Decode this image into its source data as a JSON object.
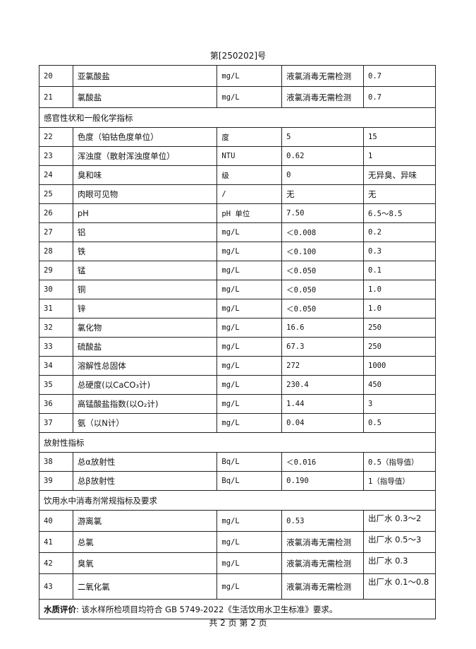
{
  "header": "第[250202]号",
  "rows_a": [
    {
      "no": "20",
      "item": "亚氯酸盐",
      "unit": "mg/L",
      "result": "液氯消毒无需检测",
      "limit": "0.7"
    },
    {
      "no": "21",
      "item": "氯酸盐",
      "unit": "mg/L",
      "result": "液氯消毒无需检测",
      "limit": "0.7"
    }
  ],
  "section1": "感官性状和一般化学指标",
  "rows_b": [
    {
      "no": "22",
      "item": "色度（铂钴色度单位）",
      "unit": "度",
      "result": "5",
      "limit": "15"
    },
    {
      "no": "23",
      "item": "浑浊度（散射浑浊度单位）",
      "unit": "NTU",
      "result": "0.62",
      "limit": "1"
    },
    {
      "no": "24",
      "item": "臭和味",
      "unit": "级",
      "result": "0",
      "limit": "无异臭、异味"
    },
    {
      "no": "25",
      "item": "肉眼可见物",
      "unit": "/",
      "result": "无",
      "limit": "无"
    },
    {
      "no": "26",
      "item": "pH",
      "unit": "pH 单位",
      "result": "7.50",
      "limit": "6.5～8.5"
    },
    {
      "no": "27",
      "item": "铝",
      "unit": "mg/L",
      "result": "＜0.008",
      "limit": "0.2"
    },
    {
      "no": "28",
      "item": "铁",
      "unit": "mg/L",
      "result": "＜0.100",
      "limit": "0.3"
    },
    {
      "no": "29",
      "item": "锰",
      "unit": "mg/L",
      "result": "＜0.050",
      "limit": "0.1"
    },
    {
      "no": "30",
      "item": "铜",
      "unit": "mg/L",
      "result": "＜0.050",
      "limit": "1.0"
    },
    {
      "no": "31",
      "item": "锌",
      "unit": "mg/L",
      "result": "＜0.050",
      "limit": "1.0"
    },
    {
      "no": "32",
      "item": "氯化物",
      "unit": "mg/L",
      "result": "16.6",
      "limit": "250"
    },
    {
      "no": "33",
      "item": "硫酸盐",
      "unit": "mg/L",
      "result": "67.3",
      "limit": "250"
    },
    {
      "no": "34",
      "item": "溶解性总固体",
      "unit": "mg/L",
      "result": "272",
      "limit": "1000"
    },
    {
      "no": "35",
      "item": "总硬度(以CaCO₃计)",
      "unit": "mg/L",
      "result": "230.4",
      "limit": "450"
    },
    {
      "no": "36",
      "item": "高锰酸盐指数(以O₂计)",
      "unit": "mg/L",
      "result": "1.44",
      "limit": "3"
    },
    {
      "no": "37",
      "item": "氨（以N计）",
      "unit": "mg/L",
      "result": "0.04",
      "limit": "0.5"
    }
  ],
  "section2": "放射性指标",
  "rows_c": [
    {
      "no": "38",
      "item": "总α放射性",
      "unit": "Bq/L",
      "result": "＜0.016",
      "limit": "0.5（指导值）"
    },
    {
      "no": "39",
      "item": "总β放射性",
      "unit": "Bq/L",
      "result": "0.190",
      "limit": "1（指导值）"
    }
  ],
  "section3": "饮用水中消毒剂常规指标及要求",
  "rows_d": [
    {
      "no": "40",
      "item": "游离氯",
      "unit": "mg/L",
      "result": "0.53",
      "limit": "出厂水 0.3～2"
    },
    {
      "no": "41",
      "item": "总氯",
      "unit": "mg/L",
      "result": "液氯消毒无需检测",
      "limit": "出厂水 0.5～3"
    },
    {
      "no": "42",
      "item": "臭氧",
      "unit": "mg/L",
      "result": "液氯消毒无需检测",
      "limit": "出厂水 0.3"
    },
    {
      "no": "43",
      "item": "二氧化氯",
      "unit": "mg/L",
      "result": "液氯消毒无需检测",
      "limit": "出厂水 0.1～0.8"
    }
  ],
  "evaluation": {
    "label": "水质评价",
    "text": ": 该水样所检项目均符合 GB  5749-2022《生活饮用水卫生标准》要求。"
  },
  "footer": "共 2 页  第 2 页"
}
